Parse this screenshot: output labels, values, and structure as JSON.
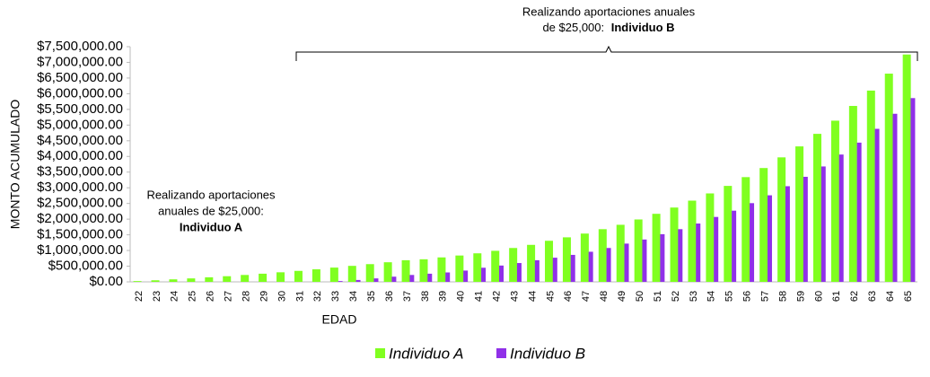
{
  "chart_data": {
    "type": "bar",
    "y_label": "MONTO ACUMULADO",
    "x_label": "EDAD",
    "categories": [
      "22",
      "23",
      "24",
      "25",
      "26",
      "27",
      "28",
      "29",
      "30",
      "31",
      "32",
      "33",
      "34",
      "35",
      "36",
      "37",
      "38",
      "39",
      "40",
      "41",
      "42",
      "43",
      "44",
      "45",
      "46",
      "47",
      "48",
      "49",
      "50",
      "51",
      "52",
      "53",
      "54",
      "55",
      "56",
      "57",
      "58",
      "59",
      "60",
      "61",
      "62",
      "63",
      "64",
      "65"
    ],
    "series": [
      {
        "name": "Individuo A",
        "color": "#80ff20",
        "values": [
          25000,
          50000,
          80000,
          110000,
          145000,
          180000,
          220000,
          260000,
          305000,
          350000,
          400000,
          455000,
          510000,
          565000,
          625000,
          690000,
          720000,
          780000,
          840000,
          910000,
          990000,
          1080000,
          1180000,
          1310000,
          1420000,
          1540000,
          1680000,
          1820000,
          1990000,
          2170000,
          2370000,
          2590000,
          2820000,
          3060000,
          3340000,
          3630000,
          3970000,
          4320000,
          4720000,
          5140000,
          5610000,
          6100000,
          6640000,
          7250000
        ]
      },
      {
        "name": "Individuo B",
        "color": "#9030e8",
        "values": [
          0,
          0,
          0,
          0,
          0,
          0,
          0,
          0,
          0,
          0,
          0,
          25000,
          60000,
          110000,
          165000,
          220000,
          260000,
          300000,
          360000,
          450000,
          520000,
          600000,
          690000,
          770000,
          860000,
          960000,
          1080000,
          1220000,
          1350000,
          1520000,
          1680000,
          1860000,
          2070000,
          2270000,
          2510000,
          2760000,
          3050000,
          3350000,
          3680000,
          4060000,
          4440000,
          4880000,
          5360000,
          5860000
        ]
      }
    ],
    "ylim": [
      0,
      7500000
    ],
    "yticks": [
      {
        "value": 0,
        "label": "$0.00"
      },
      {
        "value": 500000,
        "label": "$500,000.00"
      },
      {
        "value": 1000000,
        "label": "$1,000,000.00"
      },
      {
        "value": 1500000,
        "label": "$1,500,000.00"
      },
      {
        "value": 2000000,
        "label": "$2,000,000.00"
      },
      {
        "value": 2500000,
        "label": "$2,500,000.00"
      },
      {
        "value": 3000000,
        "label": "$3,000,000.00"
      },
      {
        "value": 3500000,
        "label": "$3,500,000.00"
      },
      {
        "value": 4000000,
        "label": "$4,000,000.00"
      },
      {
        "value": 4500000,
        "label": "$4,500,000.00"
      },
      {
        "value": 5000000,
        "label": "$5,000,000.00"
      },
      {
        "value": 5500000,
        "label": "$5,500,000.00"
      },
      {
        "value": 6000000,
        "label": "$6,000,000.00"
      },
      {
        "value": 6500000,
        "label": "$6,500,000.00"
      },
      {
        "value": 7000000,
        "label": "$7,000,000.00"
      },
      {
        "value": 7500000,
        "label": "$7,500,000.00"
      }
    ],
    "grid": false,
    "legend": "bottom",
    "annotations": [
      {
        "lines": [
          "Realizando aportaciones",
          "anuales de $25,000:"
        ],
        "bold": "Individuo A"
      },
      {
        "lines": [
          "Realizando aportaciones anuales",
          "de $25,000: "
        ],
        "bold": "Individuo B"
      }
    ]
  }
}
